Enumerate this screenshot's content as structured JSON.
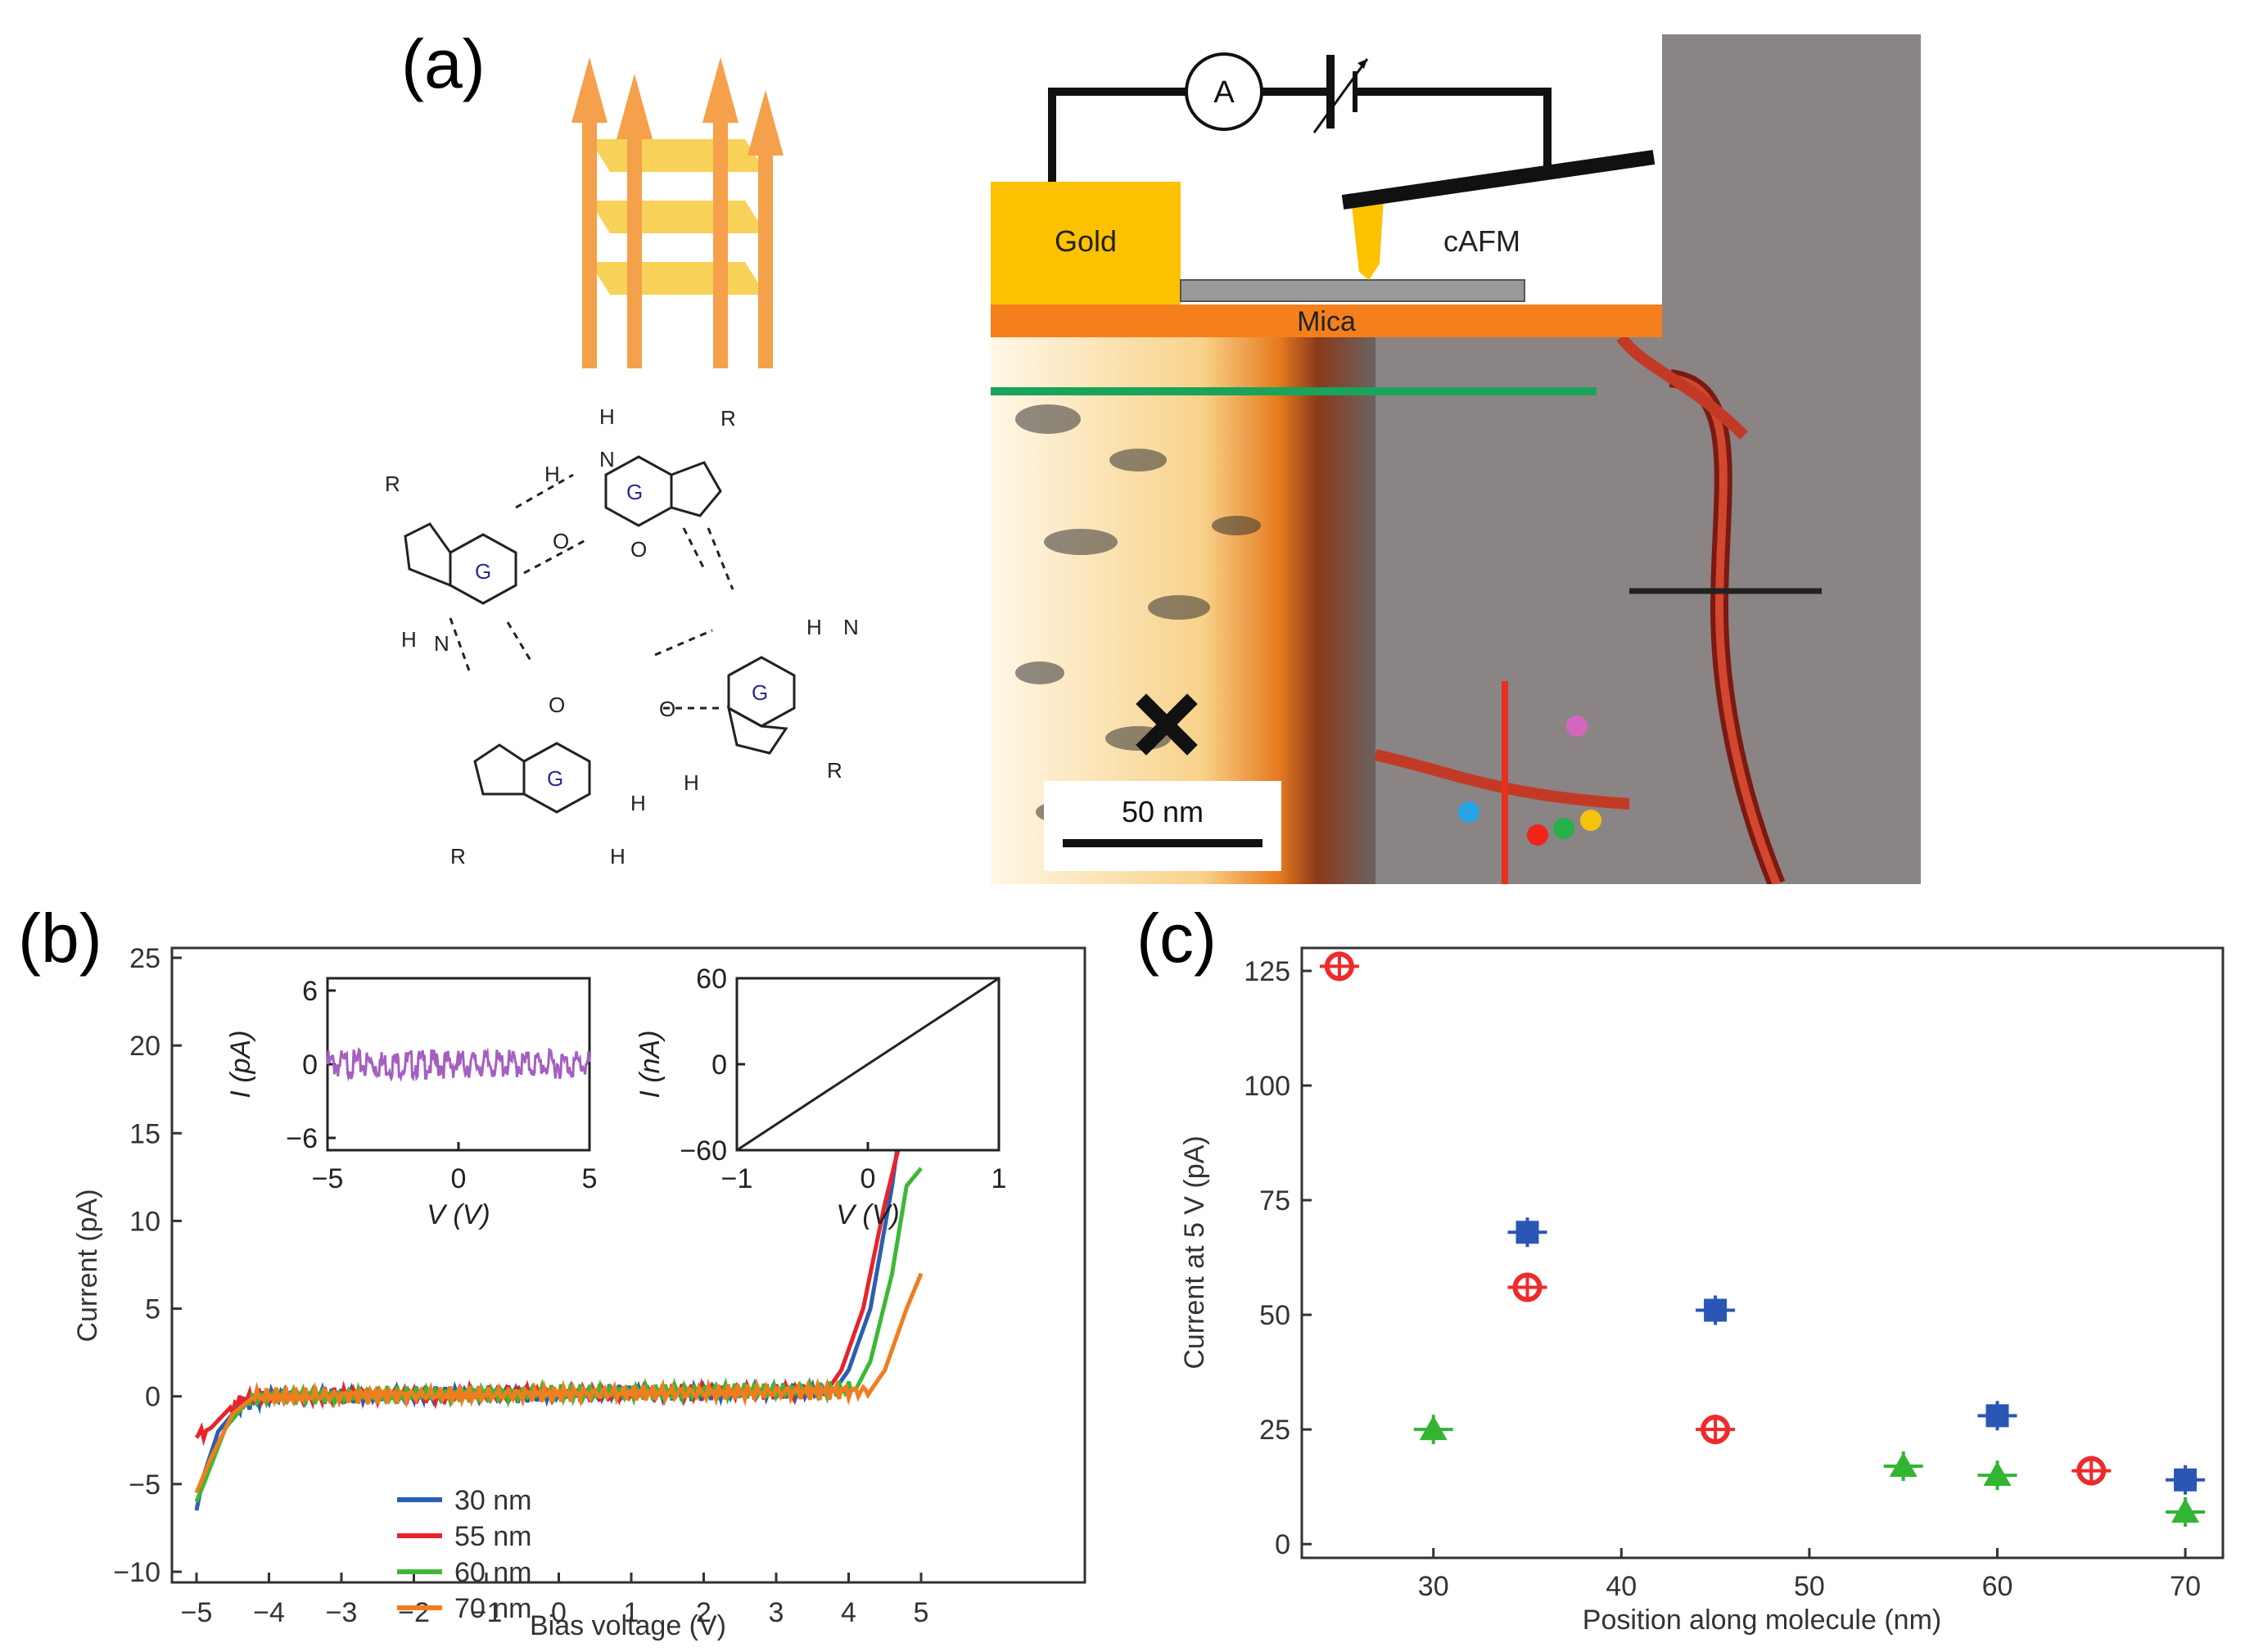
{
  "panel_labels": {
    "a": "(a)",
    "b": "(b)",
    "c": "(c)"
  },
  "panel_a": {
    "base_label": "G",
    "atoms": {
      "N": "N",
      "H": "H",
      "R": "R",
      "O": "O"
    },
    "schematic": {
      "ammeter": "A",
      "gold": "Gold",
      "mica": "Mica",
      "cafm": "cAFM"
    },
    "scale_bar": "50 nm",
    "colors": {
      "arrow": "#f5a04a",
      "plate": "#f7c93c",
      "gold": "#fcc200",
      "mica": "#f57f1c",
      "green_line": "#1aa35a",
      "red_line": "#e8301d",
      "black_line": "#222222"
    },
    "dots": [
      {
        "name": "blue",
        "color": "#29a5e6"
      },
      {
        "name": "red",
        "color": "#f0241b"
      },
      {
        "name": "green",
        "color": "#26b04a"
      },
      {
        "name": "yellow",
        "color": "#f5c30c"
      },
      {
        "name": "magenta",
        "color": "#d466c0"
      }
    ]
  },
  "chart_data": [
    {
      "type": "line",
      "panel": "b",
      "xlabel": "Bias voltage (V)",
      "ylabel": "Current (pA)",
      "xlim": [
        -5,
        5
      ],
      "ylim": [
        -10,
        25
      ],
      "xticks": [
        "-5",
        "-4",
        "-3",
        "-2",
        "-1",
        "0",
        "1",
        "2",
        "3",
        "4",
        "5"
      ],
      "yticks": [
        "-10",
        "-5",
        "0",
        "5",
        "10",
        "15",
        "20",
        "25"
      ],
      "legend_position": "lower-left",
      "series": [
        {
          "name": "30 nm",
          "color": "#2b5fb0",
          "points": [
            [
              -5,
              -6.5
            ],
            [
              -4.9,
              -4.5
            ],
            [
              -4.7,
              -2
            ],
            [
              -4.4,
              -0.5
            ],
            [
              -4,
              0
            ],
            [
              3.8,
              0.3
            ],
            [
              4,
              1.5
            ],
            [
              4.3,
              5
            ],
            [
              4.6,
              12
            ],
            [
              4.8,
              18
            ],
            [
              5,
              21
            ]
          ]
        },
        {
          "name": "55 nm",
          "color": "#e8232b",
          "points": [
            [
              -5,
              -2.3
            ],
            [
              -4.8,
              -1.8
            ],
            [
              -4.5,
              -0.5
            ],
            [
              -4.2,
              0
            ],
            [
              3.7,
              0.3
            ],
            [
              3.9,
              1.5
            ],
            [
              4.2,
              5
            ],
            [
              4.5,
              11
            ],
            [
              4.8,
              16
            ],
            [
              5,
              17
            ]
          ]
        },
        {
          "name": "60 nm",
          "color": "#3cb834",
          "points": [
            [
              -5,
              -6
            ],
            [
              -4.9,
              -5
            ],
            [
              -4.6,
              -1.8
            ],
            [
              -4.3,
              -0.3
            ],
            [
              -4,
              0
            ],
            [
              4.1,
              0.4
            ],
            [
              4.3,
              2
            ],
            [
              4.6,
              7
            ],
            [
              4.8,
              12
            ],
            [
              5,
              13
            ]
          ]
        },
        {
          "name": "70 nm",
          "color": "#f07d1f",
          "points": [
            [
              -5,
              -5.5
            ],
            [
              -4.8,
              -3.5
            ],
            [
              -4.5,
              -1
            ],
            [
              -4.2,
              0
            ],
            [
              4.3,
              0.3
            ],
            [
              4.5,
              1.5
            ],
            [
              4.8,
              5
            ],
            [
              5,
              7
            ]
          ]
        }
      ],
      "insets": [
        {
          "xlabel": "V (V)",
          "ylabel": "I (pA)",
          "xticks": [
            "-5",
            "0",
            "5"
          ],
          "yticks": [
            "6",
            "0",
            "-6"
          ],
          "xlim": [
            -5,
            5
          ],
          "ylim": [
            -7,
            7
          ],
          "line_color": "#a55fc0"
        },
        {
          "xlabel": "V (V)",
          "ylabel": "I (nA)",
          "xticks": [
            "-1",
            "0",
            "1"
          ],
          "yticks": [
            "60",
            "0",
            "-60"
          ],
          "xlim": [
            -1,
            1
          ],
          "ylim": [
            -60,
            60
          ],
          "line_color": "#222222"
        }
      ]
    },
    {
      "type": "scatter",
      "panel": "c",
      "xlabel": "Position along molecule (nm)",
      "ylabel": "Current at 5 V (pA)",
      "xlim": [
        23,
        72
      ],
      "ylim": [
        -3,
        130
      ],
      "xticks": [
        "30",
        "40",
        "50",
        "60",
        "70"
      ],
      "yticks": [
        "0",
        "25",
        "50",
        "75",
        "100",
        "125"
      ],
      "series": [
        {
          "name": "red",
          "marker": "circle",
          "color": "#ef2a2a",
          "points": [
            [
              25,
              126
            ],
            [
              35,
              56
            ],
            [
              45,
              25
            ],
            [
              65,
              16
            ]
          ]
        },
        {
          "name": "blue",
          "marker": "square",
          "color": "#2a57b5",
          "points": [
            [
              35,
              68
            ],
            [
              45,
              51
            ],
            [
              60,
              28
            ],
            [
              70,
              14
            ]
          ]
        },
        {
          "name": "green",
          "marker": "triangle",
          "color": "#33b533",
          "points": [
            [
              30,
              25
            ],
            [
              55,
              17
            ],
            [
              60,
              15
            ],
            [
              70,
              7
            ]
          ]
        }
      ]
    }
  ]
}
